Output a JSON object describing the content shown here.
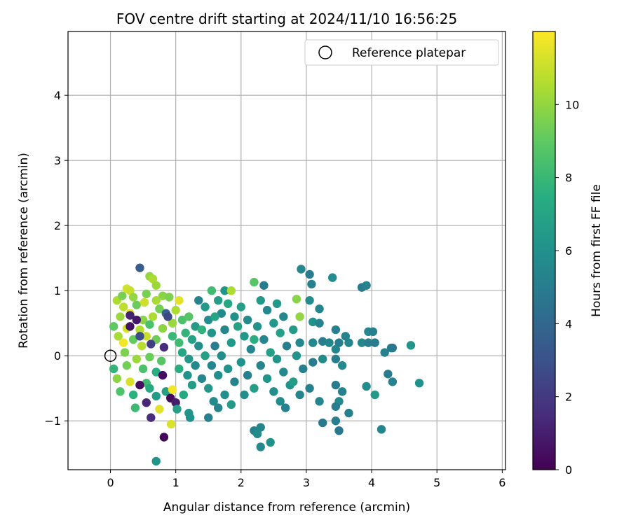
{
  "chart_data": {
    "type": "scatter",
    "title": "FOV centre drift starting at 2024/11/10 16:56:25",
    "xlabel": "Angular distance from reference (arcmin)",
    "ylabel": "Rotation from reference (arcmin)",
    "xlim": [
      -0.65,
      6.05
    ],
    "ylim": [
      -1.75,
      4.98
    ],
    "xticks": [
      0,
      1,
      2,
      3,
      4,
      5,
      6
    ],
    "yticks": [
      -1,
      0,
      1,
      2,
      3,
      4
    ],
    "grid": true,
    "legend": {
      "position": "top-right",
      "entries": [
        {
          "label": "Reference platepar",
          "marker": "open-circle"
        }
      ]
    },
    "reference_point": {
      "x": 0,
      "y": 0
    },
    "colorbar": {
      "label": "Hours from first FF file",
      "colormap": "viridis",
      "range": [
        0,
        12
      ],
      "ticks": [
        0,
        2,
        4,
        6,
        8,
        10
      ]
    },
    "points": [
      {
        "x": 0.45,
        "y": 1.35,
        "h": 3.5
      },
      {
        "x": 0.6,
        "y": 1.22,
        "h": 10
      },
      {
        "x": 0.65,
        "y": 1.18,
        "h": 10.5
      },
      {
        "x": 0.7,
        "y": 1.08,
        "h": 10.2
      },
      {
        "x": 0.25,
        "y": 1.03,
        "h": 11.2
      },
      {
        "x": 0.3,
        "y": 1.0,
        "h": 11
      },
      {
        "x": 0.55,
        "y": 0.95,
        "h": 9.5
      },
      {
        "x": 0.8,
        "y": 0.92,
        "h": 9.8
      },
      {
        "x": 0.1,
        "y": 0.85,
        "h": 10.5
      },
      {
        "x": 0.35,
        "y": 0.9,
        "h": 10
      },
      {
        "x": 0.9,
        "y": 0.9,
        "h": 9.6
      },
      {
        "x": 1.05,
        "y": 0.85,
        "h": 11.5
      },
      {
        "x": 0.2,
        "y": 0.75,
        "h": 10.8
      },
      {
        "x": 0.4,
        "y": 0.78,
        "h": 9.2
      },
      {
        "x": 0.75,
        "y": 0.72,
        "h": 9.4
      },
      {
        "x": 0.85,
        "y": 0.65,
        "h": 3.8
      },
      {
        "x": 0.15,
        "y": 0.6,
        "h": 10.2
      },
      {
        "x": 0.3,
        "y": 0.65,
        "h": 11.5
      },
      {
        "x": 0.5,
        "y": 0.55,
        "h": 9.8
      },
      {
        "x": 0.65,
        "y": 0.6,
        "h": 10.5
      },
      {
        "x": 0.05,
        "y": 0.45,
        "h": 9
      },
      {
        "x": 0.25,
        "y": 0.42,
        "h": 11.2
      },
      {
        "x": 0.45,
        "y": 0.4,
        "h": 10.6
      },
      {
        "x": 0.6,
        "y": 0.48,
        "h": 8.5
      },
      {
        "x": 0.8,
        "y": 0.42,
        "h": 9.9
      },
      {
        "x": 0.95,
        "y": 0.5,
        "h": 10.1
      },
      {
        "x": 0.12,
        "y": 0.3,
        "h": 10.4
      },
      {
        "x": 0.35,
        "y": 0.25,
        "h": 9.1
      },
      {
        "x": 0.55,
        "y": 0.3,
        "h": 11
      },
      {
        "x": 0.7,
        "y": 0.25,
        "h": 9.3
      },
      {
        "x": 0.2,
        "y": 0.2,
        "h": 11.8
      },
      {
        "x": 0.48,
        "y": 0.15,
        "h": 10.7
      },
      {
        "x": 0.62,
        "y": 0.18,
        "h": 2.2
      },
      {
        "x": 0.82,
        "y": 0.13,
        "h": 1.5
      },
      {
        "x": 0.3,
        "y": 0.62,
        "h": 1.2
      },
      {
        "x": 0.4,
        "y": 0.55,
        "h": 0.8
      },
      {
        "x": 0.22,
        "y": 0.05,
        "h": 9.6
      },
      {
        "x": 0.4,
        "y": -0.05,
        "h": 10.2
      },
      {
        "x": 0.6,
        "y": -0.02,
        "h": 9.2
      },
      {
        "x": 0.78,
        "y": -0.08,
        "h": 8.8
      },
      {
        "x": 0.05,
        "y": -0.2,
        "h": 7.8
      },
      {
        "x": 0.25,
        "y": -0.15,
        "h": 9.4
      },
      {
        "x": 0.5,
        "y": -0.2,
        "h": 8.5
      },
      {
        "x": 0.7,
        "y": -0.25,
        "h": 7.5
      },
      {
        "x": 0.1,
        "y": -0.35,
        "h": 9.9
      },
      {
        "x": 0.3,
        "y": -0.4,
        "h": 11.3
      },
      {
        "x": 0.55,
        "y": -0.42,
        "h": 8.2
      },
      {
        "x": 0.8,
        "y": -0.3,
        "h": 0.5
      },
      {
        "x": 0.15,
        "y": -0.55,
        "h": 8.6
      },
      {
        "x": 0.35,
        "y": -0.6,
        "h": 7.6
      },
      {
        "x": 0.6,
        "y": -0.5,
        "h": 7.2
      },
      {
        "x": 0.85,
        "y": -0.55,
        "h": 6.8
      },
      {
        "x": 0.45,
        "y": -0.45,
        "h": 0.4
      },
      {
        "x": 0.55,
        "y": -0.72,
        "h": 1.3
      },
      {
        "x": 0.7,
        "y": -0.62,
        "h": 6.5
      },
      {
        "x": 0.95,
        "y": -0.52,
        "h": 11.8
      },
      {
        "x": 0.38,
        "y": -0.8,
        "h": 8.1
      },
      {
        "x": 0.75,
        "y": -0.82,
        "h": 11.5
      },
      {
        "x": 0.92,
        "y": -0.65,
        "h": 0.3
      },
      {
        "x": 0.62,
        "y": -0.95,
        "h": 1.5
      },
      {
        "x": 0.82,
        "y": -1.25,
        "h": 0.2
      },
      {
        "x": 0.7,
        "y": -1.62,
        "h": 6.2
      },
      {
        "x": 0.93,
        "y": -1.05,
        "h": 11.3
      },
      {
        "x": 1.0,
        "y": -0.72,
        "h": 1.0
      },
      {
        "x": 1.02,
        "y": -0.82,
        "h": 6.8
      },
      {
        "x": 0.3,
        "y": 0.45,
        "h": 0.6
      },
      {
        "x": 0.45,
        "y": 0.3,
        "h": 2.8
      },
      {
        "x": 0.88,
        "y": 0.6,
        "h": 2.5
      },
      {
        "x": 1.0,
        "y": 0.7,
        "h": 10.5
      },
      {
        "x": 1.1,
        "y": 0.55,
        "h": 8.5
      },
      {
        "x": 1.2,
        "y": 0.6,
        "h": 8.8
      },
      {
        "x": 1.3,
        "y": 0.45,
        "h": 6.5
      },
      {
        "x": 1.15,
        "y": 0.35,
        "h": 7.8
      },
      {
        "x": 1.25,
        "y": 0.25,
        "h": 6.9
      },
      {
        "x": 1.05,
        "y": 0.2,
        "h": 8.2
      },
      {
        "x": 1.35,
        "y": 0.15,
        "h": 5.8
      },
      {
        "x": 1.1,
        "y": 0.05,
        "h": 7.1
      },
      {
        "x": 1.2,
        "y": -0.05,
        "h": 6.3
      },
      {
        "x": 1.3,
        "y": -0.15,
        "h": 5.6
      },
      {
        "x": 1.05,
        "y": -0.2,
        "h": 7.4
      },
      {
        "x": 1.18,
        "y": -0.3,
        "h": 6.1
      },
      {
        "x": 1.4,
        "y": -0.35,
        "h": 5.5
      },
      {
        "x": 1.25,
        "y": -0.45,
        "h": 6.6
      },
      {
        "x": 1.12,
        "y": -0.6,
        "h": 7.2
      },
      {
        "x": 1.2,
        "y": -0.88,
        "h": 6.2
      },
      {
        "x": 1.22,
        "y": -0.95,
        "h": 6.0
      },
      {
        "x": 1.35,
        "y": 0.85,
        "h": 5.3
      },
      {
        "x": 1.45,
        "y": 0.75,
        "h": 6.4
      },
      {
        "x": 1.5,
        "y": 0.55,
        "h": 5.8
      },
      {
        "x": 1.55,
        "y": 0.35,
        "h": 6.2
      },
      {
        "x": 1.6,
        "y": 0.15,
        "h": 5.1
      },
      {
        "x": 1.45,
        "y": 0.0,
        "h": 6.8
      },
      {
        "x": 1.55,
        "y": -0.15,
        "h": 5.4
      },
      {
        "x": 1.65,
        "y": -0.3,
        "h": 5.9
      },
      {
        "x": 1.5,
        "y": -0.5,
        "h": 6.3
      },
      {
        "x": 1.58,
        "y": -0.7,
        "h": 5.7
      },
      {
        "x": 1.5,
        "y": -0.95,
        "h": 5.2
      },
      {
        "x": 1.55,
        "y": 1.0,
        "h": 8.2
      },
      {
        "x": 1.65,
        "y": 0.85,
        "h": 6.6
      },
      {
        "x": 1.7,
        "y": 0.65,
        "h": 5.6
      },
      {
        "x": 1.75,
        "y": 1.0,
        "h": 6.2
      },
      {
        "x": 1.85,
        "y": 1.0,
        "h": 10.5
      },
      {
        "x": 1.8,
        "y": 0.8,
        "h": 7.1
      },
      {
        "x": 1.9,
        "y": 0.6,
        "h": 6.0
      },
      {
        "x": 1.75,
        "y": 0.4,
        "h": 5.5
      },
      {
        "x": 1.85,
        "y": 0.2,
        "h": 6.4
      },
      {
        "x": 1.7,
        "y": 0.0,
        "h": 5.8
      },
      {
        "x": 1.8,
        "y": -0.2,
        "h": 6.1
      },
      {
        "x": 1.9,
        "y": -0.4,
        "h": 5.3
      },
      {
        "x": 1.75,
        "y": -0.6,
        "h": 5.9
      },
      {
        "x": 1.85,
        "y": -0.75,
        "h": 6.5
      },
      {
        "x": 1.65,
        "y": -0.8,
        "h": 5.4
      },
      {
        "x": 2.0,
        "y": 0.75,
        "h": 6.8
      },
      {
        "x": 2.1,
        "y": 0.55,
        "h": 5.7
      },
      {
        "x": 2.05,
        "y": 0.3,
        "h": 6.3
      },
      {
        "x": 2.15,
        "y": 0.1,
        "h": 5.5
      },
      {
        "x": 2.0,
        "y": -0.1,
        "h": 6.0
      },
      {
        "x": 2.1,
        "y": -0.3,
        "h": 5.2
      },
      {
        "x": 2.2,
        "y": -0.5,
        "h": 6.6
      },
      {
        "x": 2.05,
        "y": -0.6,
        "h": 5.8
      },
      {
        "x": 2.2,
        "y": 1.13,
        "h": 8.8
      },
      {
        "x": 2.35,
        "y": 1.08,
        "h": 5.0
      },
      {
        "x": 2.3,
        "y": 0.85,
        "h": 6.4
      },
      {
        "x": 2.4,
        "y": 0.7,
        "h": 5.6
      },
      {
        "x": 2.25,
        "y": 0.45,
        "h": 6.1
      },
      {
        "x": 2.35,
        "y": 0.25,
        "h": 5.4
      },
      {
        "x": 2.45,
        "y": 0.05,
        "h": 6.7
      },
      {
        "x": 2.3,
        "y": -0.15,
        "h": 5.3
      },
      {
        "x": 2.4,
        "y": -0.35,
        "h": 6.2
      },
      {
        "x": 2.5,
        "y": -0.55,
        "h": 5.9
      },
      {
        "x": 2.2,
        "y": -1.15,
        "h": 5.2
      },
      {
        "x": 2.3,
        "y": -1.1,
        "h": 5.4
      },
      {
        "x": 2.3,
        "y": -1.4,
        "h": 5.6
      },
      {
        "x": 2.45,
        "y": -1.33,
        "h": 6.0
      },
      {
        "x": 2.25,
        "y": -1.2,
        "h": 5.8
      },
      {
        "x": 2.55,
        "y": 0.8,
        "h": 6.4
      },
      {
        "x": 2.65,
        "y": 0.6,
        "h": 5.5
      },
      {
        "x": 2.6,
        "y": 0.35,
        "h": 6.8
      },
      {
        "x": 2.7,
        "y": 0.15,
        "h": 5.1
      },
      {
        "x": 2.55,
        "y": -0.05,
        "h": 6.2
      },
      {
        "x": 2.65,
        "y": -0.25,
        "h": 5.6
      },
      {
        "x": 2.75,
        "y": -0.45,
        "h": 6.0
      },
      {
        "x": 2.6,
        "y": -0.7,
        "h": 5.7
      },
      {
        "x": 2.68,
        "y": -0.8,
        "h": 5.3
      },
      {
        "x": 2.85,
        "y": 0.87,
        "h": 9.8
      },
      {
        "x": 2.9,
        "y": 0.6,
        "h": 10.0
      },
      {
        "x": 2.8,
        "y": 0.4,
        "h": 6.5
      },
      {
        "x": 2.9,
        "y": 0.2,
        "h": 5.5
      },
      {
        "x": 2.85,
        "y": 0.0,
        "h": 6.1
      },
      {
        "x": 2.95,
        "y": -0.2,
        "h": 5.2
      },
      {
        "x": 2.8,
        "y": -0.4,
        "h": 6.6
      },
      {
        "x": 2.9,
        "y": -0.6,
        "h": 5.4
      },
      {
        "x": 2.92,
        "y": 1.33,
        "h": 5.5
      },
      {
        "x": 3.05,
        "y": 1.25,
        "h": 5.0
      },
      {
        "x": 3.08,
        "y": 1.1,
        "h": 5.2
      },
      {
        "x": 3.05,
        "y": 0.85,
        "h": 5.8
      },
      {
        "x": 3.2,
        "y": 0.72,
        "h": 5.4
      },
      {
        "x": 3.1,
        "y": 0.52,
        "h": 6.0
      },
      {
        "x": 3.2,
        "y": 0.5,
        "h": 5.3
      },
      {
        "x": 3.1,
        "y": 0.2,
        "h": 5.6
      },
      {
        "x": 3.25,
        "y": 0.22,
        "h": 5.1
      },
      {
        "x": 3.35,
        "y": 0.2,
        "h": 5.4
      },
      {
        "x": 3.1,
        "y": -0.1,
        "h": 5.0
      },
      {
        "x": 3.25,
        "y": -0.05,
        "h": 5.7
      },
      {
        "x": 3.05,
        "y": -0.5,
        "h": 5.2
      },
      {
        "x": 3.2,
        "y": -0.7,
        "h": 5.5
      },
      {
        "x": 3.25,
        "y": -1.03,
        "h": 4.9
      },
      {
        "x": 3.45,
        "y": -1.0,
        "h": 5.1
      },
      {
        "x": 3.4,
        "y": 1.2,
        "h": 5.8
      },
      {
        "x": 3.45,
        "y": 0.4,
        "h": 5.2
      },
      {
        "x": 3.5,
        "y": 0.2,
        "h": 5.0
      },
      {
        "x": 3.45,
        "y": 0.1,
        "h": 5.4
      },
      {
        "x": 3.45,
        "y": -0.05,
        "h": 5.1
      },
      {
        "x": 3.55,
        "y": -0.15,
        "h": 5.6
      },
      {
        "x": 3.45,
        "y": -0.45,
        "h": 5.0
      },
      {
        "x": 3.55,
        "y": -0.55,
        "h": 5.3
      },
      {
        "x": 3.5,
        "y": -0.7,
        "h": 5.6
      },
      {
        "x": 3.45,
        "y": -0.78,
        "h": 5.0
      },
      {
        "x": 3.5,
        "y": -1.15,
        "h": 4.8
      },
      {
        "x": 3.65,
        "y": -0.88,
        "h": 5.2
      },
      {
        "x": 3.6,
        "y": 0.3,
        "h": 5.3
      },
      {
        "x": 3.65,
        "y": 0.2,
        "h": 5.4
      },
      {
        "x": 3.85,
        "y": 1.05,
        "h": 5.0
      },
      {
        "x": 3.92,
        "y": 1.08,
        "h": 5.3
      },
      {
        "x": 3.85,
        "y": 0.2,
        "h": 5.6
      },
      {
        "x": 3.95,
        "y": 0.2,
        "h": 5.1
      },
      {
        "x": 3.95,
        "y": 0.37,
        "h": 5.5
      },
      {
        "x": 4.02,
        "y": 0.37,
        "h": 5.2
      },
      {
        "x": 4.05,
        "y": 0.2,
        "h": 5.0
      },
      {
        "x": 4.2,
        "y": 0.05,
        "h": 5.3
      },
      {
        "x": 4.3,
        "y": 0.12,
        "h": 5.1
      },
      {
        "x": 4.32,
        "y": 0.12,
        "h": 4.8
      },
      {
        "x": 3.92,
        "y": -0.47,
        "h": 5.8
      },
      {
        "x": 4.05,
        "y": -0.6,
        "h": 6.4
      },
      {
        "x": 4.15,
        "y": -1.13,
        "h": 5.4
      },
      {
        "x": 4.25,
        "y": -0.28,
        "h": 5.0
      },
      {
        "x": 4.32,
        "y": -0.4,
        "h": 5.2
      },
      {
        "x": 4.6,
        "y": 0.16,
        "h": 6.2
      },
      {
        "x": 4.73,
        "y": -0.42,
        "h": 6.0
      },
      {
        "x": 1.95,
        "y": 0.45,
        "h": 6.9
      },
      {
        "x": 2.5,
        "y": 0.5,
        "h": 6.3
      },
      {
        "x": 2.2,
        "y": 0.25,
        "h": 7.5
      },
      {
        "x": 1.6,
        "y": 0.6,
        "h": 7.0
      },
      {
        "x": 1.4,
        "y": 0.4,
        "h": 7.7
      },
      {
        "x": 0.95,
        "y": 0.3,
        "h": 8.0
      },
      {
        "x": 0.7,
        "y": 0.85,
        "h": 10.4
      },
      {
        "x": 0.18,
        "y": 0.92,
        "h": 9.5
      },
      {
        "x": 0.52,
        "y": 0.82,
        "h": 11.1
      }
    ]
  }
}
